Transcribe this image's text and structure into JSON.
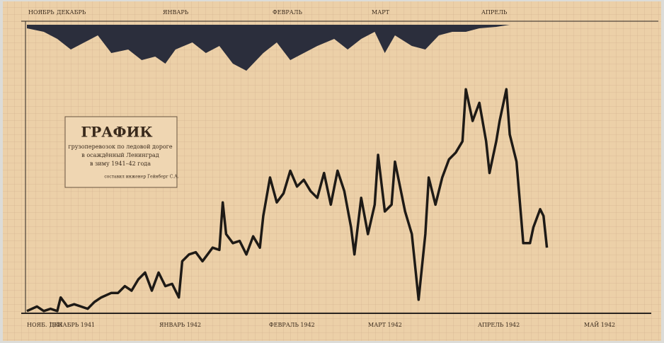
{
  "chart_data": {
    "type": "line",
    "title": "ГРАФИК",
    "subtitle": [
      "грузоперевозок по ледовой дороге",
      "в осаждённый Ленинград",
      "в зиму 1941–42 года"
    ],
    "author": "составил инженер Гейнберг С.А.",
    "months_bottom": [
      "НОЯБ. 1941",
      "ДЕКАБРЬ 1941",
      "ЯНВАРЬ 1942",
      "ФЕВРАЛЬ 1942",
      "МАРТ 1942",
      "АПРЕЛЬ 1942",
      "МАЙ 1942"
    ],
    "months_top": [
      "НОЯБРЬ",
      "ДЕКАБРЬ",
      "ЯНВАРЬ",
      "ФЕВРАЛЬ",
      "МАРТ",
      "АПРЕЛЬ"
    ],
    "xlim": [
      0,
      170
    ],
    "ylim": [
      0,
      100
    ],
    "y2lim": [
      0,
      100
    ],
    "series": [
      {
        "color": "#1e1a16",
        "x": [
          0,
          3,
          5,
          7,
          9,
          10,
          12,
          14,
          16,
          18,
          20,
          22,
          25,
          27,
          29,
          31,
          33,
          35,
          37,
          39,
          41,
          43,
          45,
          46,
          48,
          50,
          52,
          55,
          57,
          58,
          59,
          61,
          63,
          65,
          67,
          69,
          70,
          72,
          74,
          76,
          78,
          80,
          82,
          84,
          86,
          88,
          90,
          92,
          94,
          96,
          97,
          99,
          101,
          103,
          104,
          106,
          108,
          109,
          112,
          114,
          116,
          118,
          119,
          121,
          123,
          125,
          127,
          129,
          130,
          132,
          134,
          136,
          137,
          139,
          140,
          142,
          143,
          145,
          147,
          149,
          150,
          152,
          153,
          154
        ],
        "values": [
          1,
          3,
          1,
          2,
          1,
          7,
          3,
          4,
          3,
          2,
          5,
          7,
          9,
          9,
          12,
          10,
          15,
          18,
          10,
          18,
          12,
          13,
          7,
          23,
          26,
          27,
          23,
          29,
          28,
          49,
          35,
          31,
          32,
          26,
          34,
          29,
          43,
          60,
          49,
          53,
          63,
          56,
          59,
          54,
          51,
          62,
          48,
          63,
          54,
          38,
          26,
          51,
          35,
          48,
          70,
          45,
          48,
          67,
          45,
          35,
          6,
          35,
          60,
          48,
          60,
          68,
          71,
          76,
          99,
          85,
          93,
          76,
          62,
          76,
          85,
          99,
          79,
          67,
          31,
          31,
          38,
          46,
          43,
          29
        ]
      },
      {
        "color": "#2b2e3c",
        "axis": "y2",
        "x": [
          0,
          5,
          9,
          13,
          17,
          21,
          25,
          30,
          34,
          38,
          41,
          44,
          49,
          53,
          57,
          61,
          65,
          70,
          74,
          78,
          82,
          86,
          91,
          95,
          99,
          103,
          106,
          109,
          114,
          118,
          122,
          126,
          130,
          134,
          139,
          143,
          147,
          154
        ],
        "values": [
          5,
          10,
          20,
          35,
          25,
          15,
          40,
          35,
          50,
          45,
          55,
          35,
          25,
          40,
          30,
          55,
          65,
          40,
          25,
          50,
          40,
          30,
          20,
          35,
          20,
          10,
          40,
          15,
          30,
          35,
          15,
          10,
          10,
          5,
          3,
          0,
          0,
          0
        ]
      }
    ]
  }
}
